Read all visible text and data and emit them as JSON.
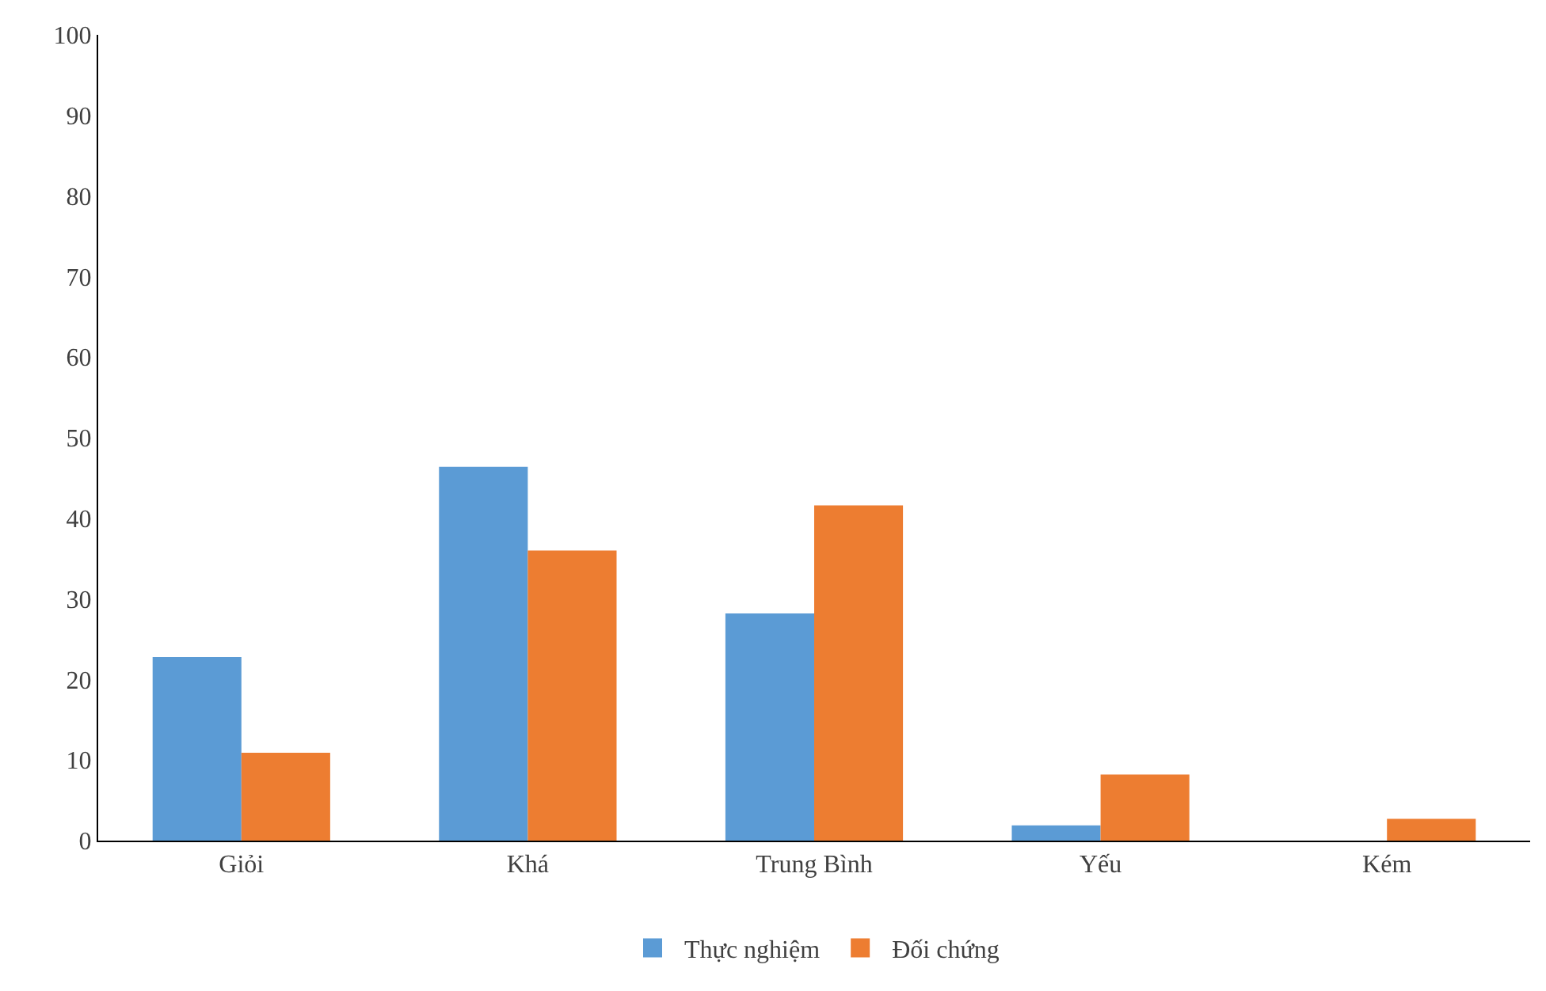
{
  "chart_data": {
    "type": "bar",
    "categories": [
      "Giỏi",
      "Khá",
      "Trung Bình",
      "Yếu",
      "Kém"
    ],
    "series": [
      {
        "name": "Thực nghiệm",
        "color": "#5b9bd5",
        "values": [
          22.8,
          46.4,
          28.2,
          1.9,
          null
        ]
      },
      {
        "name": "Đối chứng",
        "color": "#ed7d31",
        "values": [
          10.9,
          36.0,
          41.6,
          8.2,
          2.7
        ]
      }
    ],
    "ylim": [
      0,
      100
    ],
    "yticks": [
      0,
      10,
      20,
      30,
      40,
      50,
      60,
      70,
      80,
      90,
      100
    ],
    "legend": "bottom"
  }
}
